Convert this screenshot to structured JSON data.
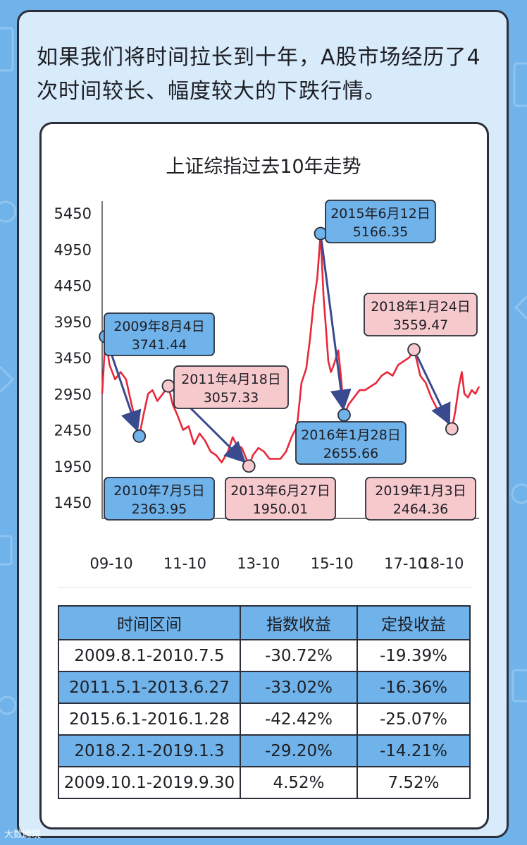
{
  "headline": "如果我们将时间拉长到十年，A股市场经历了4次时间较长、幅度较大的下跌行情。",
  "colors": {
    "blue_label": "#6fb3ea",
    "pink_label": "#f6c9cd",
    "line": "#e8283a",
    "arrow": "#3a4a8e"
  },
  "chart_data": {
    "type": "line",
    "title": "上证综指过去10年走势",
    "yticks": [
      "5450",
      "4950",
      "4450",
      "3950",
      "3450",
      "2950",
      "2450",
      "1950",
      "1450"
    ],
    "ylim": [
      1450,
      5450
    ],
    "xticks": [
      "09-10",
      "11-10",
      "13-10",
      "15-10",
      "17-10",
      "18-10"
    ],
    "xtick_dates": [
      2009.75,
      2011.75,
      2013.75,
      2015.75,
      2017.75,
      2018.75
    ],
    "xlim": [
      2009.5,
      2019.75
    ],
    "series": [
      {
        "x": [
          2009.5,
          2009.59,
          2009.7,
          2009.85,
          2010.0,
          2010.15,
          2010.3,
          2010.42,
          2010.51,
          2010.62,
          2010.75,
          2010.87,
          2011.0,
          2011.15,
          2011.3,
          2011.42,
          2011.55,
          2011.7,
          2011.85,
          2012.0,
          2012.15,
          2012.3,
          2012.45,
          2012.6,
          2012.75,
          2012.92,
          2013.05,
          2013.15,
          2013.3,
          2013.42,
          2013.49,
          2013.6,
          2013.75,
          2013.9,
          2014.05,
          2014.2,
          2014.35,
          2014.5,
          2014.65,
          2014.8,
          2014.92,
          2015.05,
          2015.15,
          2015.25,
          2015.35,
          2015.44,
          2015.52,
          2015.58,
          2015.65,
          2015.72,
          2015.8,
          2015.92,
          2016.0,
          2016.08,
          2016.2,
          2016.35,
          2016.5,
          2016.65,
          2016.8,
          2016.95,
          2017.1,
          2017.25,
          2017.4,
          2017.55,
          2017.7,
          2017.85,
          2017.98,
          2018.06,
          2018.15,
          2018.3,
          2018.45,
          2018.6,
          2018.75,
          2018.9,
          2019.01,
          2019.1,
          2019.2,
          2019.28,
          2019.35,
          2019.45,
          2019.55,
          2019.65,
          2019.75
        ],
        "y": [
          2950,
          3741.44,
          3350,
          3150,
          3250,
          3150,
          2800,
          2550,
          2363.95,
          2650,
          2950,
          3000,
          2850,
          2950,
          3057.33,
          2800,
          2650,
          2450,
          2500,
          2250,
          2400,
          2300,
          2150,
          2100,
          2000,
          2150,
          2350,
          2250,
          2200,
          2050,
          1950.01,
          2100,
          2200,
          2150,
          2050,
          2050,
          2050,
          2150,
          2350,
          2500,
          3100,
          3300,
          3700,
          4200,
          4550,
          5166.35,
          4300,
          3900,
          3400,
          3250,
          3350,
          3550,
          3150,
          2655.66,
          2800,
          2900,
          3000,
          3000,
          3050,
          3100,
          3200,
          3250,
          3200,
          3350,
          3400,
          3450,
          3559.47,
          3400,
          3200,
          3100,
          2900,
          2750,
          2650,
          2550,
          2464.36,
          2700,
          3050,
          3250,
          2950,
          2900,
          3000,
          2950,
          3050
        ]
      }
    ],
    "annotations": [
      {
        "label": "2009年8月4日",
        "value": "3741.44",
        "x": 2009.59,
        "y": 3741.44,
        "style": "blue"
      },
      {
        "label": "2010年7月5日",
        "value": "2363.95",
        "x": 2010.51,
        "y": 2363.95,
        "style": "blue"
      },
      {
        "label": "2011年4月18日",
        "value": "3057.33",
        "x": 2011.3,
        "y": 3057.33,
        "style": "pink"
      },
      {
        "label": "2013年6月27日",
        "value": "1950.01",
        "x": 2013.49,
        "y": 1950.01,
        "style": "pink"
      },
      {
        "label": "2015年6月12日",
        "value": "5166.35",
        "x": 2015.44,
        "y": 5166.35,
        "style": "blue"
      },
      {
        "label": "2016年1月28日",
        "value": "2655.66",
        "x": 2016.08,
        "y": 2655.66,
        "style": "blue"
      },
      {
        "label": "2018年1月24日",
        "value": "3559.47",
        "x": 2017.98,
        "y": 3559.47,
        "style": "pink"
      },
      {
        "label": "2019年1月3日",
        "value": "2464.36",
        "x": 2019.01,
        "y": 2464.36,
        "style": "pink"
      }
    ],
    "arrows": [
      [
        0,
        1
      ],
      [
        2,
        3
      ],
      [
        4,
        5
      ],
      [
        6,
        7
      ]
    ]
  },
  "table": {
    "headers": [
      "时间区间",
      "指数收益",
      "定投收益"
    ],
    "rows": [
      [
        "2009.8.1-2010.7.5",
        "-30.72%",
        "-19.39%"
      ],
      [
        "2011.5.1-2013.6.27",
        "-33.02%",
        "-16.36%"
      ],
      [
        "2015.6.1-2016.1.28",
        "-42.42%",
        "-25.07%"
      ],
      [
        "2018.2.1-2019.1.3",
        "-29.20%",
        "-14.21%"
      ],
      [
        "2009.10.1-2019.9.30",
        "4.52%",
        "7.52%"
      ]
    ]
  },
  "watermark": "大数跨境"
}
